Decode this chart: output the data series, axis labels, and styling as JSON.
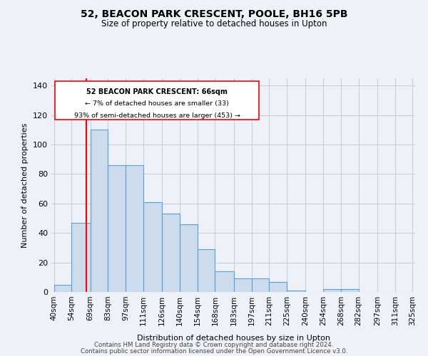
{
  "title": "52, BEACON PARK CRESCENT, POOLE, BH16 5PB",
  "subtitle": "Size of property relative to detached houses in Upton",
  "xlabel": "Distribution of detached houses by size in Upton",
  "ylabel": "Number of detached properties",
  "bar_labels": [
    "40sqm",
    "54sqm",
    "69sqm",
    "83sqm",
    "97sqm",
    "111sqm",
    "126sqm",
    "140sqm",
    "154sqm",
    "168sqm",
    "183sqm",
    "197sqm",
    "211sqm",
    "225sqm",
    "240sqm",
    "254sqm",
    "268sqm",
    "282sqm",
    "297sqm",
    "311sqm",
    "325sqm"
  ],
  "bin_edges": [
    40,
    54,
    69,
    83,
    97,
    111,
    126,
    140,
    154,
    168,
    183,
    197,
    211,
    225,
    240,
    254,
    268,
    282,
    297,
    311,
    325
  ],
  "counts": [
    5,
    47,
    110,
    86,
    86,
    61,
    53,
    46,
    29,
    14,
    9,
    9,
    7,
    1,
    0,
    2,
    2,
    0,
    0,
    0
  ],
  "bar_color": "#ccdcec",
  "bar_edge_color": "#5a9fd4",
  "red_line_x": 66,
  "annotation_title": "52 BEACON PARK CRESCENT: 66sqm",
  "annotation_line1": "← 7% of detached houses are smaller (33)",
  "annotation_line2": "93% of semi-detached houses are larger (453) →",
  "footer1": "Contains HM Land Registry data © Crown copyright and database right 2024.",
  "footer2": "Contains public sector information licensed under the Open Government Licence v3.0.",
  "bg_color": "#eef2f8",
  "ylim": [
    0,
    145
  ],
  "yticks": [
    0,
    20,
    40,
    60,
    80,
    100,
    120,
    140
  ]
}
